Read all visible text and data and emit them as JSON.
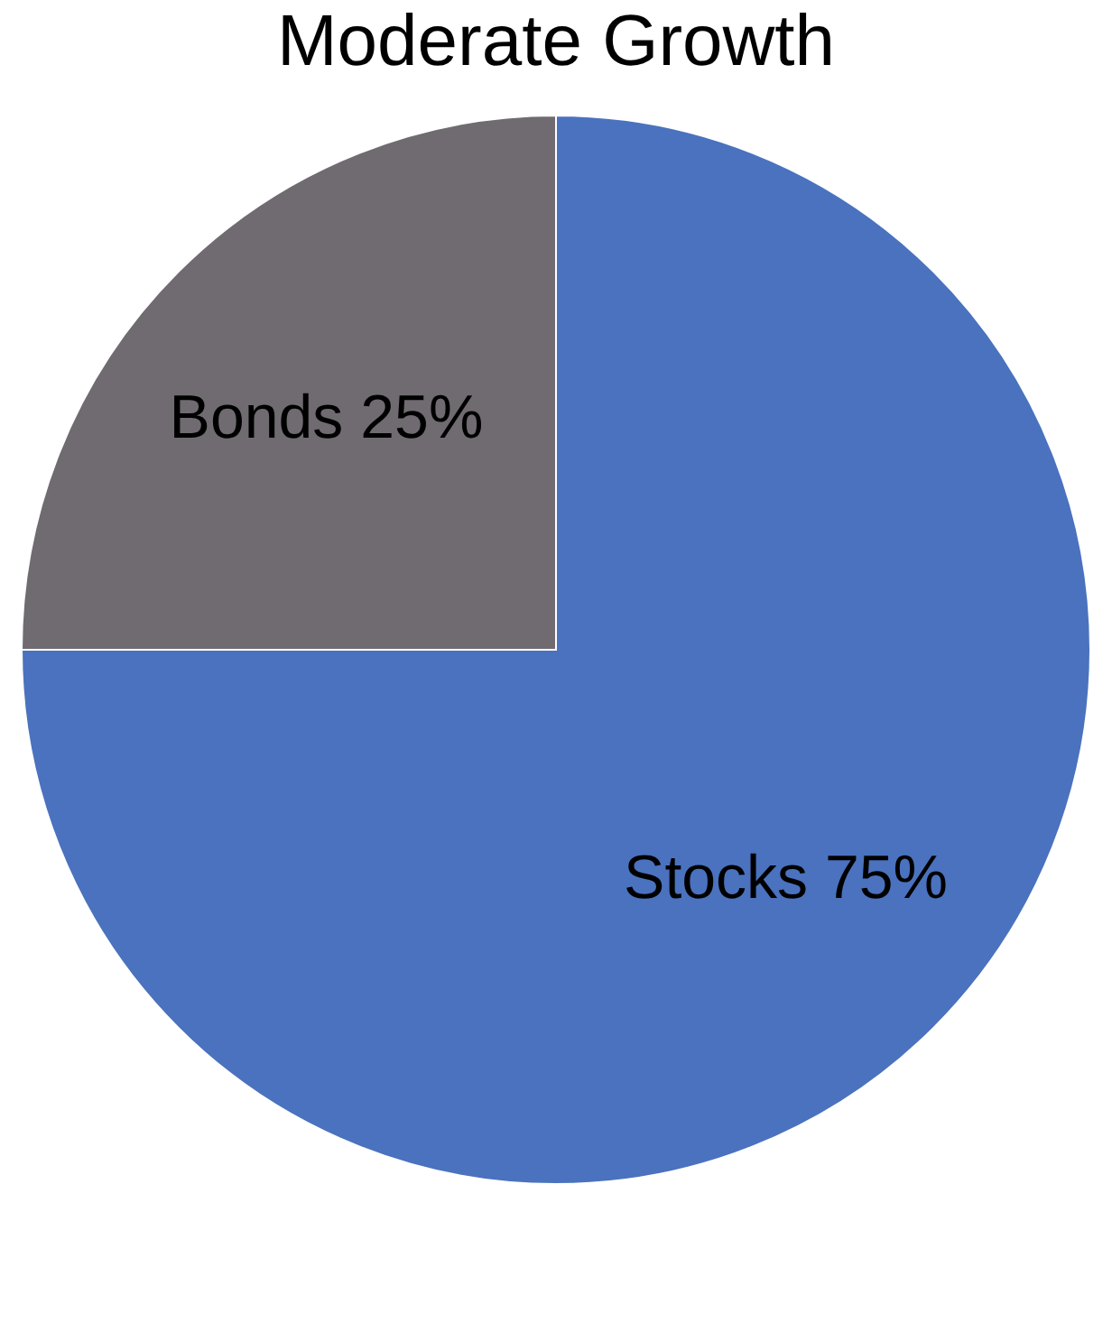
{
  "chart_data": {
    "type": "pie",
    "title": "Moderate Growth",
    "categories": [
      "Stocks",
      "Bonds"
    ],
    "values": [
      75,
      25
    ],
    "colors": [
      "#4a72be",
      "#6f6b70"
    ],
    "value_labels": [
      "75%",
      "25%"
    ],
    "legend": false
  }
}
